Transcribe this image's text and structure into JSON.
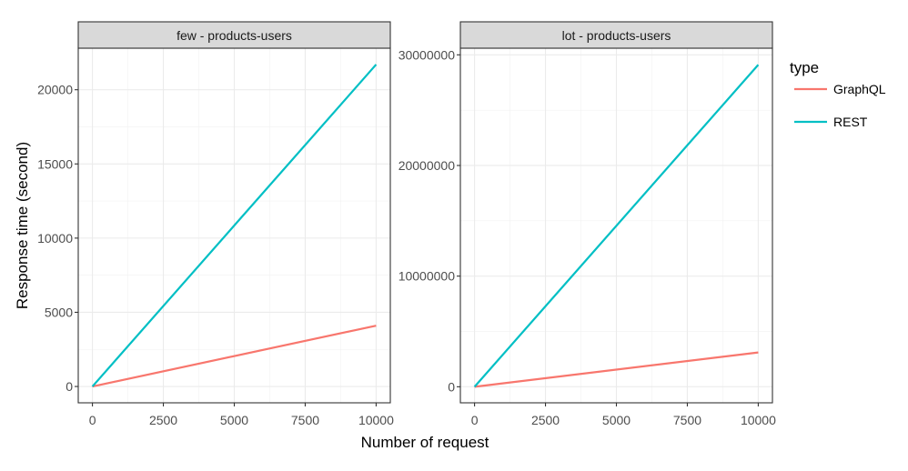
{
  "chart_data": {
    "type": "line",
    "xlabel": "Number of request",
    "ylabel": "Response time (second)",
    "legend": {
      "title": "type",
      "position": "right"
    },
    "grid": true,
    "colors": {
      "GraphQL": "#F8766D",
      "REST": "#00BFC4"
    },
    "panels": [
      {
        "strip_label": "few - products-users",
        "xlim": [
          -500,
          10500
        ],
        "ylim": [
          -1100,
          22800
        ],
        "x_ticks": [
          0,
          2500,
          5000,
          7500,
          10000
        ],
        "x_tick_labels": [
          "0",
          "2500",
          "5000",
          "7500",
          "10000"
        ],
        "y_ticks": [
          0,
          5000,
          10000,
          15000,
          20000
        ],
        "y_tick_labels": [
          "0",
          "5000",
          "10000",
          "15000",
          "20000"
        ],
        "series": [
          {
            "name": "GraphQL",
            "x": [
              0,
              10000
            ],
            "y": [
              0,
              4100
            ]
          },
          {
            "name": "REST",
            "x": [
              0,
              10000
            ],
            "y": [
              0,
              21700
            ]
          }
        ]
      },
      {
        "strip_label": "lot - products-users",
        "xlim": [
          -500,
          10500
        ],
        "ylim": [
          -1450000,
          30600000
        ],
        "x_ticks": [
          0,
          2500,
          5000,
          7500,
          10000
        ],
        "x_tick_labels": [
          "0",
          "2500",
          "5000",
          "7500",
          "10000"
        ],
        "y_ticks": [
          0,
          10000000,
          20000000,
          30000000
        ],
        "y_tick_labels": [
          "0",
          "10000000",
          "20000000",
          "30000000"
        ],
        "series": [
          {
            "name": "GraphQL",
            "x": [
              0,
              10000
            ],
            "y": [
              0,
              3100000
            ]
          },
          {
            "name": "REST",
            "x": [
              0,
              10000
            ],
            "y": [
              0,
              29100000
            ]
          }
        ]
      }
    ]
  }
}
